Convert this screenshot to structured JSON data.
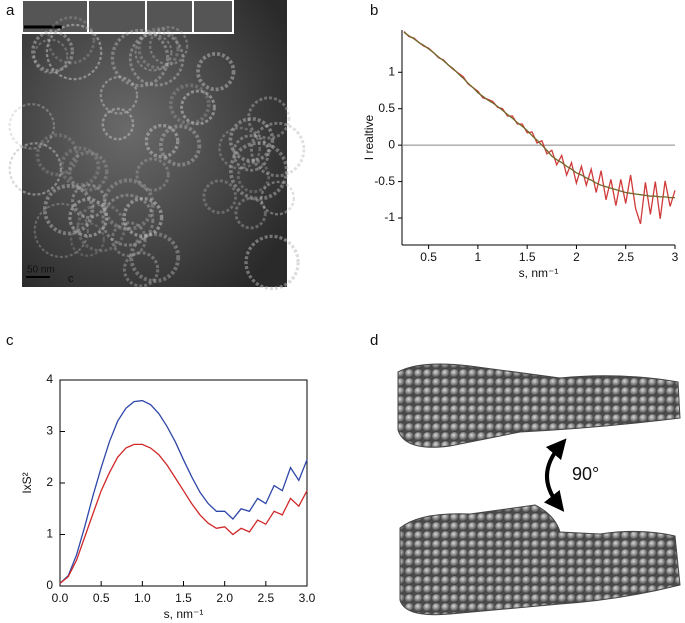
{
  "panels": {
    "a": {
      "label": "a",
      "scale_bar": "50 nm",
      "mark": "c"
    },
    "d": {
      "label": "d",
      "rotation": "90°"
    }
  },
  "chart_data": [
    {
      "type": "line",
      "panel_label": "b",
      "xlabel": "s, nm⁻¹",
      "ylabel": "I realtive",
      "x": [
        0.25,
        0.3,
        0.35,
        0.4,
        0.45,
        0.5,
        0.55,
        0.6,
        0.65,
        0.7,
        0.75,
        0.8,
        0.85,
        0.9,
        0.95,
        1.0,
        1.05,
        1.1,
        1.15,
        1.2,
        1.25,
        1.3,
        1.35,
        1.4,
        1.45,
        1.5,
        1.55,
        1.6,
        1.65,
        1.7,
        1.75,
        1.8,
        1.85,
        1.9,
        1.95,
        2.0,
        2.05,
        2.1,
        2.15,
        2.2,
        2.25,
        2.3,
        2.35,
        2.4,
        2.45,
        2.5,
        2.55,
        2.6,
        2.65,
        2.7,
        2.75,
        2.8,
        2.85,
        2.9,
        2.95,
        3.0
      ],
      "series": [
        {
          "color": "#d03a3a",
          "values": [
            1.56,
            1.49,
            1.47,
            1.41,
            1.36,
            1.33,
            1.27,
            1.2,
            1.17,
            1.1,
            1.04,
            0.99,
            0.94,
            0.84,
            0.79,
            0.74,
            0.65,
            0.63,
            0.6,
            0.52,
            0.5,
            0.4,
            0.4,
            0.29,
            0.29,
            0.17,
            0.18,
            0.03,
            0.06,
            -0.12,
            -0.07,
            -0.27,
            -0.14,
            -0.41,
            -0.24,
            -0.52,
            -0.29,
            -0.55,
            -0.33,
            -0.65,
            -0.35,
            -0.75,
            -0.47,
            -0.83,
            -0.47,
            -0.8,
            -0.41,
            -0.87,
            -1.08,
            -0.51,
            -0.95,
            -0.5,
            -1.01,
            -0.49,
            -0.84,
            -0.62
          ]
        },
        {
          "color": "#6e6a2c",
          "values": [
            1.55,
            1.5,
            1.46,
            1.41,
            1.37,
            1.32,
            1.27,
            1.21,
            1.16,
            1.1,
            1.05,
            0.98,
            0.92,
            0.85,
            0.79,
            0.72,
            0.67,
            0.62,
            0.58,
            0.53,
            0.48,
            0.42,
            0.37,
            0.31,
            0.26,
            0.2,
            0.13,
            0.07,
            0.0,
            -0.07,
            -0.15,
            -0.2,
            -0.24,
            -0.29,
            -0.33,
            -0.38,
            -0.41,
            -0.45,
            -0.48,
            -0.52,
            -0.55,
            -0.57,
            -0.59,
            -0.61,
            -0.63,
            -0.65,
            -0.66,
            -0.67,
            -0.68,
            -0.69,
            -0.7,
            -0.7,
            -0.71,
            -0.71,
            -0.72,
            -0.72
          ]
        }
      ],
      "xlim": [
        0.23,
        3.0
      ],
      "ylim": [
        -1.37,
        1.58
      ],
      "xticks": [
        0.5,
        1,
        1.5,
        2,
        2.5,
        3
      ],
      "yticks": [
        -1,
        -0.5,
        0,
        0.5,
        1
      ],
      "zero_line": true,
      "frame": "open"
    },
    {
      "type": "line",
      "panel_label": "c",
      "xlabel": "s, nm⁻¹",
      "ylabel": "IxS²",
      "x": [
        0,
        0.1,
        0.2,
        0.3,
        0.4,
        0.5,
        0.6,
        0.7,
        0.8,
        0.9,
        1.0,
        1.1,
        1.2,
        1.3,
        1.4,
        1.5,
        1.6,
        1.7,
        1.8,
        1.9,
        2.0,
        2.1,
        2.2,
        2.3,
        2.4,
        2.5,
        2.6,
        2.7,
        2.8,
        2.9,
        3.0
      ],
      "series": [
        {
          "color": "#2f47a8",
          "values": [
            0.05,
            0.2,
            0.6,
            1.15,
            1.75,
            2.3,
            2.8,
            3.2,
            3.45,
            3.58,
            3.6,
            3.52,
            3.35,
            3.1,
            2.8,
            2.45,
            2.12,
            1.82,
            1.6,
            1.45,
            1.45,
            1.3,
            1.5,
            1.45,
            1.7,
            1.6,
            1.95,
            1.85,
            2.3,
            2.05,
            2.45
          ]
        },
        {
          "color": "#d02828",
          "values": [
            0.05,
            0.18,
            0.5,
            0.95,
            1.4,
            1.85,
            2.2,
            2.5,
            2.68,
            2.75,
            2.75,
            2.68,
            2.55,
            2.35,
            2.1,
            1.85,
            1.6,
            1.38,
            1.22,
            1.12,
            1.15,
            1.0,
            1.12,
            1.05,
            1.28,
            1.2,
            1.45,
            1.38,
            1.7,
            1.55,
            1.85
          ]
        }
      ],
      "xlim": [
        0,
        3.0
      ],
      "ylim": [
        0,
        4
      ],
      "xticks": [
        {
          "value": 0,
          "label": "0.0"
        },
        0.5,
        {
          "value": 1,
          "label": "1.0"
        },
        1.5,
        {
          "value": 2,
          "label": "2.0"
        },
        2.5,
        {
          "value": 3,
          "label": "3.0"
        }
      ],
      "yticks": [
        0,
        1,
        2,
        3,
        4
      ],
      "zero_line": false,
      "frame": "box"
    }
  ]
}
